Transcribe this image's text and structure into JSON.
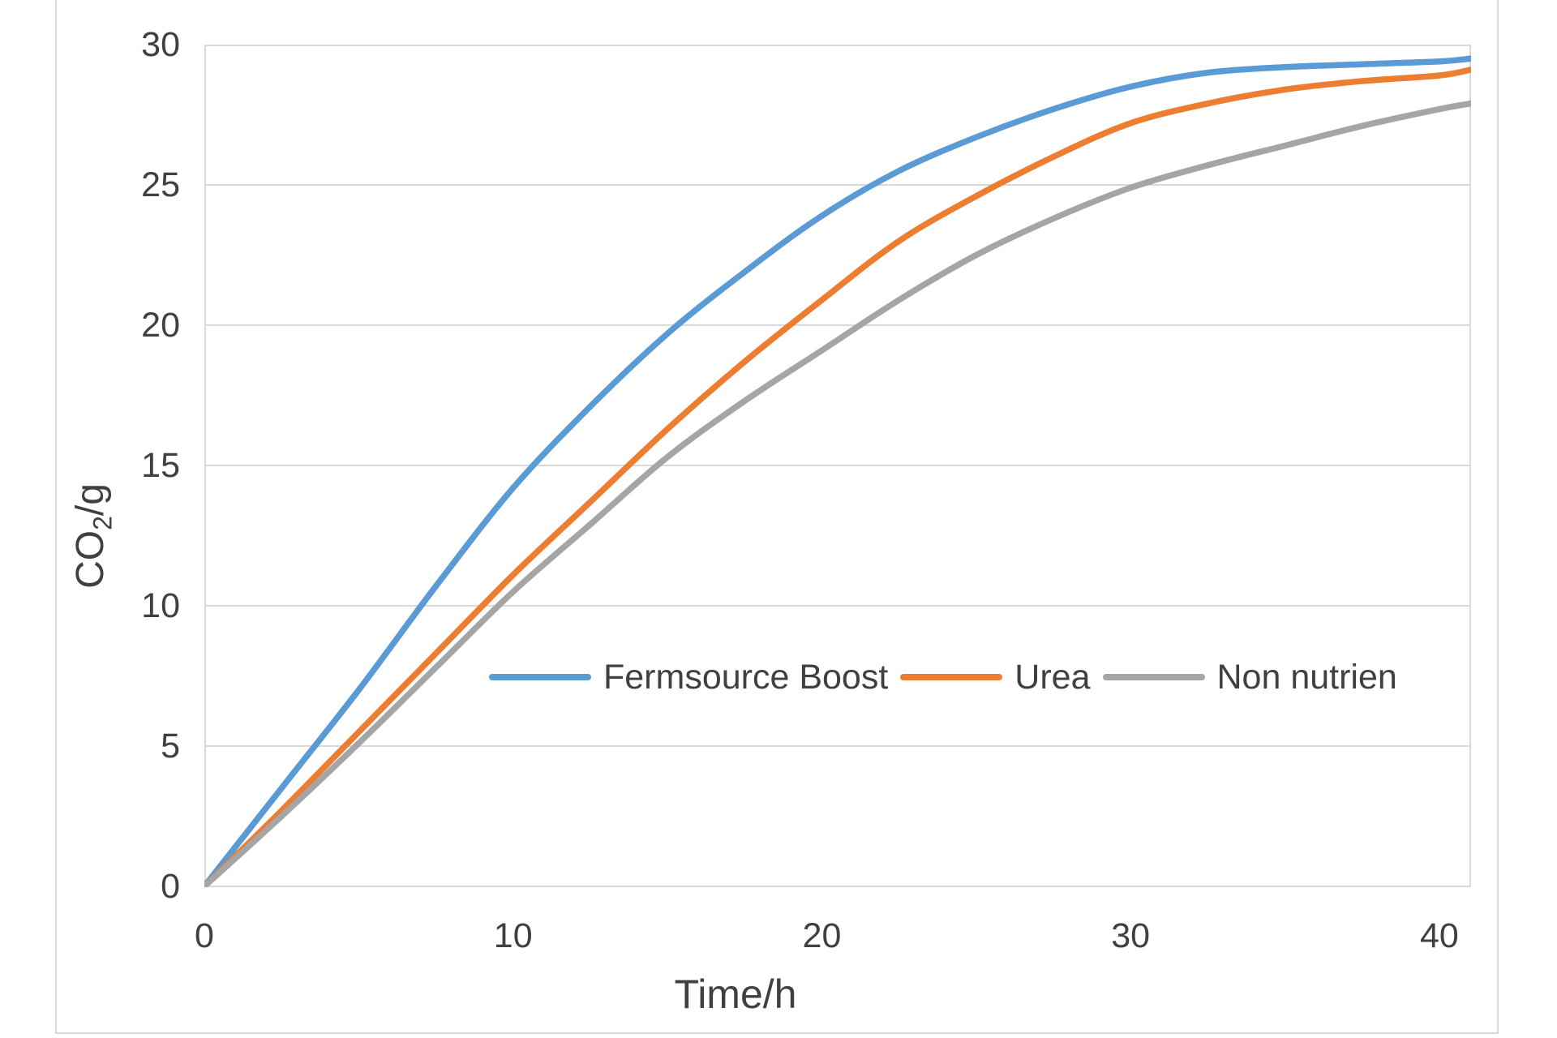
{
  "chart_data": {
    "type": "line",
    "title": "",
    "xlabel": "Time/h",
    "ylabel": "CO2/g",
    "xlim": [
      0,
      41
    ],
    "ylim": [
      0,
      30
    ],
    "x_ticks": [
      0,
      10,
      20,
      30,
      40
    ],
    "y_ticks": [
      0,
      5,
      10,
      15,
      20,
      25,
      30
    ],
    "grid": "horizontal",
    "gridline_color": "#d9d9d9",
    "plot_border_color": "#d9d9d9",
    "smooth": true,
    "legend_position": "inside-lower-right-horizontal",
    "x": [
      0,
      2.5,
      5,
      7.5,
      10,
      12.5,
      15,
      17.5,
      20,
      22.5,
      25,
      27.5,
      30,
      32.5,
      35,
      37.5,
      40,
      41
    ],
    "series": [
      {
        "name": "Fermsource Boost",
        "color": "#5b9bd5",
        "values": [
          0,
          3.5,
          7.0,
          10.7,
          14.2,
          17.1,
          19.7,
          21.9,
          23.9,
          25.5,
          26.7,
          27.7,
          28.5,
          29.0,
          29.2,
          29.3,
          29.4,
          29.5
        ]
      },
      {
        "name": "Urea",
        "color": "#ed7d31",
        "values": [
          0,
          2.7,
          5.5,
          8.3,
          11.1,
          13.7,
          16.3,
          18.7,
          20.9,
          23.0,
          24.6,
          26.0,
          27.2,
          27.9,
          28.4,
          28.7,
          28.9,
          29.1
        ]
      },
      {
        "name": "Non nutrien",
        "color": "#a5a5a5",
        "values": [
          0,
          2.5,
          5.1,
          7.8,
          10.5,
          12.9,
          15.3,
          17.3,
          19.1,
          20.9,
          22.5,
          23.8,
          24.9,
          25.7,
          26.4,
          27.1,
          27.7,
          27.9
        ]
      }
    ]
  },
  "axes": {
    "y_title_base": "CO",
    "y_title_sub": "2",
    "y_title_suffix": "/g",
    "x_title": "Time/h"
  },
  "legend": {
    "items": [
      "Fermsource Boost",
      "Urea",
      "Non nutrien"
    ]
  },
  "colors": {
    "text": "#404040",
    "gridline": "#d9d9d9",
    "background": "#ffffff"
  }
}
